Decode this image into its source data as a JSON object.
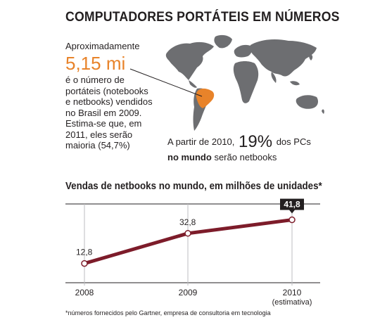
{
  "title": "COMPUTADORES PORTÁTEIS EM NÚMEROS",
  "brazil_stat": {
    "intro": "Aproximadamente",
    "number": "5,15 mi",
    "desc_lines": [
      "é o número de",
      "portáteis (notebooks",
      "e netbooks) vendidos",
      "no Brasil em 2009.",
      "Estima-se que, em",
      "2011, eles serão",
      "maioria (54,7%)"
    ]
  },
  "world_stat": {
    "prefix": "A partir de 2010,",
    "percent": "19%",
    "suffix": "dos PCs",
    "bold": "no mundo",
    "end": "serão netbooks"
  },
  "colors": {
    "accent": "#e8832a",
    "line": "#7d1c2a",
    "map": "#6d6e71",
    "highlight": "#e8832a"
  },
  "chart_data": {
    "type": "line",
    "title": "Vendas de netbooks no mundo, em milhões de unidades*",
    "categories": [
      "2008",
      "2009",
      "2010"
    ],
    "category_notes": [
      "",
      "",
      "(estimativa)"
    ],
    "values": [
      12.8,
      32.8,
      41.8
    ],
    "value_labels": [
      "12,8",
      "32,8",
      "41,8"
    ],
    "highlighted_index": 2,
    "ylim": [
      0,
      50
    ],
    "grid": true
  },
  "footnote": "*números fornecidos pelo Gartner, empresa de consultoria em tecnologia"
}
